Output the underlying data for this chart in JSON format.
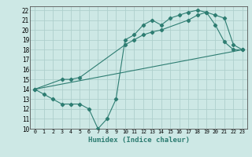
{
  "xlabel": "Humidex (Indice chaleur)",
  "bg_color": "#cde8e5",
  "line_color": "#2e7d72",
  "grid_color": "#aed0cc",
  "xlim": [
    -0.5,
    23.5
  ],
  "ylim": [
    10,
    22.4
  ],
  "xticks": [
    0,
    1,
    2,
    3,
    4,
    5,
    6,
    7,
    8,
    9,
    10,
    11,
    12,
    13,
    14,
    15,
    16,
    17,
    18,
    19,
    20,
    21,
    22,
    23
  ],
  "yticks": [
    10,
    11,
    12,
    13,
    14,
    15,
    16,
    17,
    18,
    19,
    20,
    21,
    22
  ],
  "line1_x": [
    0,
    1,
    2,
    3,
    4,
    5,
    6,
    7,
    8,
    9,
    10,
    11,
    12,
    13,
    14,
    15,
    16,
    17,
    18,
    19,
    20,
    21,
    22,
    23
  ],
  "line1_y": [
    14,
    13.5,
    13,
    12.5,
    12.5,
    12.5,
    12,
    10,
    11,
    13,
    19,
    19.5,
    20.5,
    21,
    20.5,
    21.2,
    21.5,
    21.8,
    22,
    21.8,
    20.5,
    18.8,
    18,
    18
  ],
  "line2_x": [
    0,
    3,
    4,
    5,
    10,
    11,
    12,
    13,
    14,
    17,
    18,
    19,
    20,
    21,
    22,
    23
  ],
  "line2_y": [
    14,
    15,
    15,
    15.2,
    18.5,
    19,
    19.5,
    19.8,
    20,
    21,
    21.5,
    21.8,
    21.5,
    21.2,
    18.5,
    18
  ],
  "line3_x": [
    0,
    23
  ],
  "line3_y": [
    14,
    18
  ]
}
